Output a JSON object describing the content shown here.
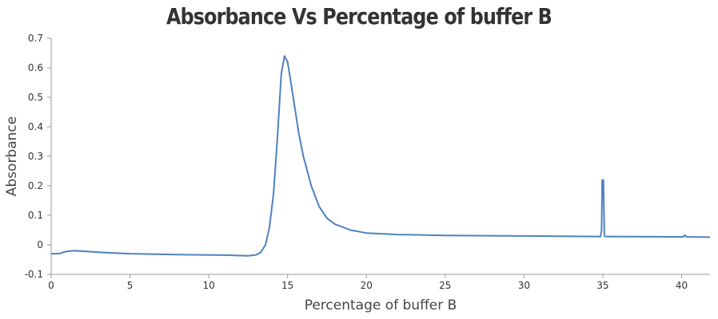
{
  "chart_data": {
    "type": "line",
    "title": "Absorbance Vs Percentage of buffer B",
    "xlabel": "Percentage of buffer B",
    "ylabel": "Absorbance",
    "xlim": [
      0,
      41.8
    ],
    "ylim": [
      -0.1,
      0.7
    ],
    "xticks": [
      0,
      5,
      10,
      15,
      20,
      25,
      30,
      35,
      40
    ],
    "yticks": [
      -0.1,
      0,
      0.1,
      0.2,
      0.3,
      0.4,
      0.5,
      0.6,
      0.7
    ],
    "grid": false,
    "color": "#4f81bd",
    "x": [
      0,
      0.5,
      1,
      1.5,
      3,
      5,
      8,
      11,
      12.5,
      13,
      13.3,
      13.6,
      13.85,
      14.1,
      14.35,
      14.6,
      14.8,
      15.0,
      15.3,
      15.7,
      16,
      16.5,
      17,
      17.5,
      18,
      19,
      20,
      22,
      25,
      30,
      34.85,
      34.92,
      34.96,
      35.04,
      35.1,
      35.2,
      40.1,
      40.2,
      40.3,
      41.8
    ],
    "y": [
      -0.03,
      -0.03,
      -0.022,
      -0.02,
      -0.025,
      -0.03,
      -0.033,
      -0.035,
      -0.037,
      -0.034,
      -0.025,
      0.0,
      0.06,
      0.17,
      0.36,
      0.58,
      0.64,
      0.62,
      0.52,
      0.38,
      0.3,
      0.2,
      0.13,
      0.09,
      0.07,
      0.05,
      0.04,
      0.035,
      0.032,
      0.03,
      0.028,
      0.05,
      0.22,
      0.22,
      0.03,
      0.028,
      0.027,
      0.033,
      0.027,
      0.026
    ]
  }
}
